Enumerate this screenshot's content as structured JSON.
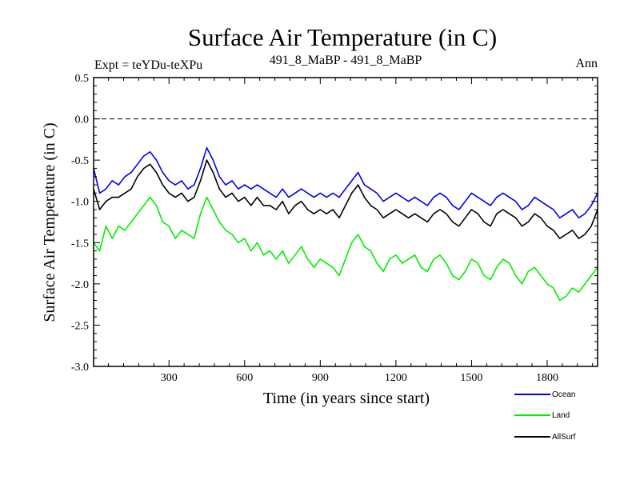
{
  "chart_data": {
    "type": "line",
    "title": "Surface Air Temperature (in C)",
    "subtitle_left": "Expt = teYDu-teXPu",
    "subtitle_center": "491_8_MaBP - 491_8_MaBP",
    "subtitle_right": "Ann",
    "xlabel": "Time (in years since start)",
    "ylabel": "Surface Air Temperature (in C)",
    "xlim": [
      1,
      2000
    ],
    "ylim": [
      -3.0,
      0.5
    ],
    "xticks": [
      300,
      600,
      900,
      1200,
      1500,
      1800
    ],
    "xtick_labels": [
      "300",
      "600",
      "900",
      "1200",
      "1500",
      "1800"
    ],
    "yticks": [
      0.5,
      0.0,
      -0.5,
      -1.0,
      -1.5,
      -2.0,
      -2.5,
      -3.0
    ],
    "ytick_labels": [
      "0.5",
      "0.0",
      "-0.5",
      "-1.0",
      "-1.5",
      "-2.0",
      "-2.5",
      "-3.0"
    ],
    "reference_line": 0.0,
    "series": [
      {
        "name": "Land",
        "color": "#00ee00",
        "x": [
          1,
          25,
          50,
          75,
          100,
          125,
          150,
          175,
          200,
          225,
          250,
          275,
          300,
          325,
          350,
          375,
          400,
          425,
          450,
          475,
          500,
          525,
          550,
          575,
          600,
          625,
          650,
          675,
          700,
          725,
          750,
          775,
          800,
          825,
          850,
          875,
          900,
          925,
          950,
          975,
          1000,
          1025,
          1050,
          1075,
          1100,
          1125,
          1150,
          1175,
          1200,
          1225,
          1250,
          1275,
          1300,
          1325,
          1350,
          1375,
          1400,
          1425,
          1450,
          1475,
          1500,
          1525,
          1550,
          1575,
          1600,
          1625,
          1650,
          1675,
          1700,
          1725,
          1750,
          1775,
          1800,
          1825,
          1850,
          1875,
          1900,
          1925,
          1950,
          1975,
          2000
        ],
        "values": [
          -1.5,
          -1.6,
          -1.3,
          -1.45,
          -1.3,
          -1.35,
          -1.25,
          -1.15,
          -1.05,
          -0.95,
          -1.05,
          -1.25,
          -1.3,
          -1.45,
          -1.35,
          -1.4,
          -1.45,
          -1.15,
          -0.95,
          -1.1,
          -1.25,
          -1.35,
          -1.4,
          -1.5,
          -1.45,
          -1.6,
          -1.5,
          -1.65,
          -1.6,
          -1.7,
          -1.6,
          -1.75,
          -1.65,
          -1.55,
          -1.7,
          -1.8,
          -1.7,
          -1.75,
          -1.8,
          -1.9,
          -1.7,
          -1.5,
          -1.4,
          -1.55,
          -1.6,
          -1.75,
          -1.85,
          -1.7,
          -1.65,
          -1.75,
          -1.7,
          -1.65,
          -1.8,
          -1.85,
          -1.7,
          -1.65,
          -1.75,
          -1.9,
          -1.95,
          -1.85,
          -1.7,
          -1.75,
          -1.9,
          -1.95,
          -1.8,
          -1.7,
          -1.75,
          -1.9,
          -2.0,
          -1.85,
          -1.8,
          -1.9,
          -2.0,
          -2.05,
          -2.2,
          -2.15,
          -2.05,
          -2.1,
          -2.0,
          -1.9,
          -1.8
        ]
      },
      {
        "name": "Ocean",
        "color": "#0000ee",
        "x": [
          1,
          25,
          50,
          75,
          100,
          125,
          150,
          175,
          200,
          225,
          250,
          275,
          300,
          325,
          350,
          375,
          400,
          425,
          450,
          475,
          500,
          525,
          550,
          575,
          600,
          625,
          650,
          675,
          700,
          725,
          750,
          775,
          800,
          825,
          850,
          875,
          900,
          925,
          950,
          975,
          1000,
          1025,
          1050,
          1075,
          1100,
          1125,
          1150,
          1175,
          1200,
          1225,
          1250,
          1275,
          1300,
          1325,
          1350,
          1375,
          1400,
          1425,
          1450,
          1475,
          1500,
          1525,
          1550,
          1575,
          1600,
          1625,
          1650,
          1675,
          1700,
          1725,
          1750,
          1775,
          1800,
          1825,
          1850,
          1875,
          1900,
          1925,
          1950,
          1975,
          2000
        ],
        "values": [
          -0.6,
          -0.9,
          -0.85,
          -0.75,
          -0.8,
          -0.7,
          -0.65,
          -0.55,
          -0.45,
          -0.4,
          -0.5,
          -0.65,
          -0.75,
          -0.8,
          -0.75,
          -0.85,
          -0.8,
          -0.6,
          -0.35,
          -0.5,
          -0.7,
          -0.8,
          -0.75,
          -0.85,
          -0.8,
          -0.85,
          -0.8,
          -0.85,
          -0.9,
          -0.95,
          -0.85,
          -0.95,
          -0.9,
          -0.85,
          -0.9,
          -0.95,
          -0.9,
          -0.95,
          -0.9,
          -0.95,
          -0.85,
          -0.75,
          -0.65,
          -0.8,
          -0.85,
          -0.9,
          -1.0,
          -0.95,
          -0.9,
          -0.95,
          -1.0,
          -0.95,
          -1.0,
          -1.05,
          -0.95,
          -0.9,
          -0.95,
          -1.05,
          -1.1,
          -1.0,
          -0.9,
          -0.95,
          -1.0,
          -1.05,
          -0.95,
          -0.9,
          -0.95,
          -1.0,
          -1.1,
          -1.05,
          -0.95,
          -1.0,
          -1.05,
          -1.1,
          -1.2,
          -1.15,
          -1.1,
          -1.2,
          -1.15,
          -1.05,
          -0.9
        ]
      },
      {
        "name": "AllSurf",
        "color": "#000000",
        "x": [
          1,
          25,
          50,
          75,
          100,
          125,
          150,
          175,
          200,
          225,
          250,
          275,
          300,
          325,
          350,
          375,
          400,
          425,
          450,
          475,
          500,
          525,
          550,
          575,
          600,
          625,
          650,
          675,
          700,
          725,
          750,
          775,
          800,
          825,
          850,
          875,
          900,
          925,
          950,
          975,
          1000,
          1025,
          1050,
          1075,
          1100,
          1125,
          1150,
          1175,
          1200,
          1225,
          1250,
          1275,
          1300,
          1325,
          1350,
          1375,
          1400,
          1425,
          1450,
          1475,
          1500,
          1525,
          1550,
          1575,
          1600,
          1625,
          1650,
          1675,
          1700,
          1725,
          1750,
          1775,
          1800,
          1825,
          1850,
          1875,
          1900,
          1925,
          1950,
          1975,
          2000
        ],
        "values": [
          -0.85,
          -1.1,
          -1.0,
          -0.95,
          -0.95,
          -0.9,
          -0.85,
          -0.7,
          -0.6,
          -0.55,
          -0.65,
          -0.8,
          -0.9,
          -0.95,
          -0.9,
          -1.0,
          -0.95,
          -0.75,
          -0.5,
          -0.65,
          -0.85,
          -0.95,
          -0.9,
          -1.0,
          -0.95,
          -1.05,
          -0.95,
          -1.05,
          -1.05,
          -1.1,
          -1.0,
          -1.15,
          -1.05,
          -1.0,
          -1.1,
          -1.15,
          -1.1,
          -1.15,
          -1.1,
          -1.2,
          -1.05,
          -0.9,
          -0.8,
          -0.95,
          -1.05,
          -1.1,
          -1.2,
          -1.15,
          -1.1,
          -1.15,
          -1.2,
          -1.15,
          -1.2,
          -1.25,
          -1.15,
          -1.1,
          -1.15,
          -1.25,
          -1.3,
          -1.2,
          -1.1,
          -1.15,
          -1.25,
          -1.3,
          -1.15,
          -1.1,
          -1.15,
          -1.2,
          -1.3,
          -1.25,
          -1.15,
          -1.2,
          -1.3,
          -1.35,
          -1.45,
          -1.4,
          -1.35,
          -1.45,
          -1.4,
          -1.3,
          -1.1
        ]
      }
    ],
    "legend": [
      {
        "name": "Ocean",
        "label": "Ocean",
        "color": "#0000ee"
      },
      {
        "name": "Land",
        "label": "Land",
        "color": "#00ee00"
      },
      {
        "name": "AllSurf",
        "label": "AllSurf",
        "color": "#000000"
      }
    ],
    "legend_position": "bottom-right",
    "grid": false
  }
}
